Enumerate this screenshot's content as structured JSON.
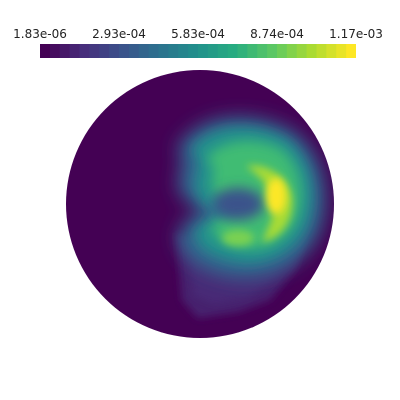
{
  "colorbar": {
    "labels": [
      "1.83e-06",
      "2.93e-04",
      "5.83e-04",
      "8.74e-04",
      "1.17e-03"
    ],
    "min": 1.83e-06,
    "max": 0.00117,
    "colormap": "viridis",
    "stops": [
      "#440154",
      "#472d7b",
      "#3b528b",
      "#2c728e",
      "#21918c",
      "#28ae80",
      "#5ec962",
      "#addc30",
      "#fde725"
    ]
  },
  "field": {
    "background_color": "#440154",
    "peak_color": "#fde725"
  }
}
